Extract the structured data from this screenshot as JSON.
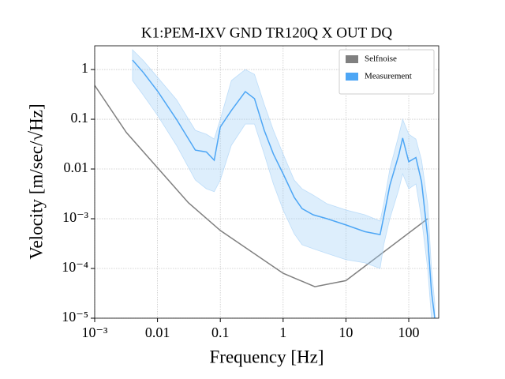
{
  "chart_data": {
    "type": "line",
    "title": "K1:PEM-IXV GND TR120Q X OUT DQ",
    "xlabel": "Frequency [Hz]",
    "ylabel": "Velocity [m/sec/√Hz]",
    "xscale": "log",
    "yscale": "log",
    "grid": true,
    "legend": "upper right",
    "xlim": [
      0.001,
      300
    ],
    "ylim": [
      1e-05,
      3
    ],
    "xticks": [
      {
        "value": 0.001,
        "label": "10⁻³"
      },
      0.01,
      0.1,
      1,
      10,
      100
    ],
    "yticks": [
      {
        "value": 1e-05,
        "label": "10⁻⁵"
      },
      {
        "value": 0.0001,
        "label": "10⁻⁴"
      },
      {
        "value": 0.001,
        "label": "10⁻³"
      },
      0.01,
      0.1,
      1
    ],
    "series": [
      {
        "name": "Selfnoise",
        "color": "#808080",
        "x": [
          0.001,
          0.0032,
          0.031,
          0.1,
          1,
          3.2,
          10,
          200
        ],
        "values": [
          0.48,
          0.054,
          0.0021,
          0.00058,
          8e-05,
          4.3e-05,
          5.7e-05,
          0.001
        ]
      },
      {
        "name": "Measurement",
        "color": "#4da6f5",
        "band_color": "#9fcdf7",
        "x": [
          0.004,
          0.006,
          0.01,
          0.02,
          0.04,
          0.06,
          0.08,
          0.1,
          0.15,
          0.25,
          0.35,
          0.5,
          0.7,
          1,
          1.5,
          2,
          3,
          5,
          10,
          20,
          35,
          40,
          50,
          70,
          80,
          100,
          130,
          160,
          200,
          230,
          260
        ],
        "values": [
          1.55,
          0.86,
          0.37,
          0.1,
          0.024,
          0.022,
          0.015,
          0.07,
          0.15,
          0.36,
          0.26,
          0.06,
          0.02,
          0.008,
          0.0027,
          0.0016,
          0.0012,
          0.001,
          0.00075,
          0.00055,
          0.00048,
          0.0011,
          0.0047,
          0.02,
          0.042,
          0.014,
          0.017,
          0.0055,
          0.00043,
          3.4e-05,
          1e-05
        ],
        "band_upper": [
          2.5,
          1.5,
          0.7,
          0.25,
          0.06,
          0.05,
          0.04,
          0.1,
          0.6,
          1,
          0.8,
          0.2,
          0.06,
          0.02,
          0.006,
          0.004,
          0.003,
          0.002,
          0.0015,
          0.0012,
          0.0009,
          0.002,
          0.01,
          0.05,
          0.1,
          0.05,
          0.04,
          0.015,
          0.002,
          0.0001,
          2e-05
        ],
        "band_lower": [
          0.6,
          0.3,
          0.12,
          0.03,
          0.006,
          0.004,
          0.0035,
          0.006,
          0.03,
          0.08,
          0.08,
          0.02,
          0.005,
          0.0015,
          0.0005,
          0.0003,
          0.00025,
          0.0002,
          0.00015,
          0.00013,
          0.0001,
          0.0003,
          0.001,
          0.004,
          0.008,
          0.004,
          0.005,
          0.001,
          0.0001,
          1e-05,
          1e-05
        ]
      }
    ]
  }
}
